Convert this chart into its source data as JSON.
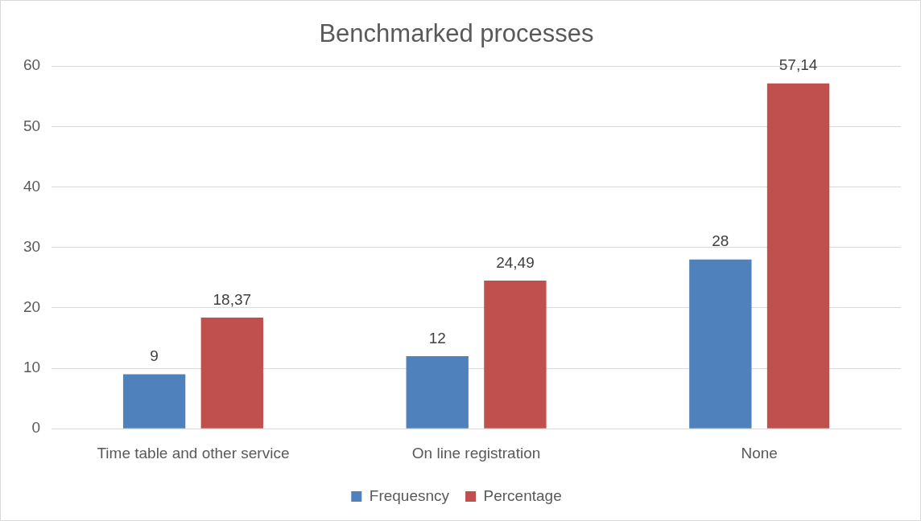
{
  "chart_data": {
    "type": "bar",
    "title": "Benchmarked processes",
    "categories": [
      "Time table and other service",
      "On line registration",
      "None"
    ],
    "series": [
      {
        "name": "Frequesncy",
        "color": "#4f81bd",
        "values": [
          9,
          12,
          28
        ],
        "value_labels": [
          "9",
          "12",
          "28"
        ]
      },
      {
        "name": "Percentage",
        "color": "#c0504d",
        "values": [
          18.37,
          24.49,
          57.14
        ],
        "value_labels": [
          "18,37",
          "24,49",
          "57,14"
        ]
      }
    ],
    "ylim": [
      0,
      60
    ],
    "yticks": [
      0,
      10,
      20,
      30,
      40,
      50,
      60
    ],
    "grid": "y",
    "legend": "bottom"
  }
}
